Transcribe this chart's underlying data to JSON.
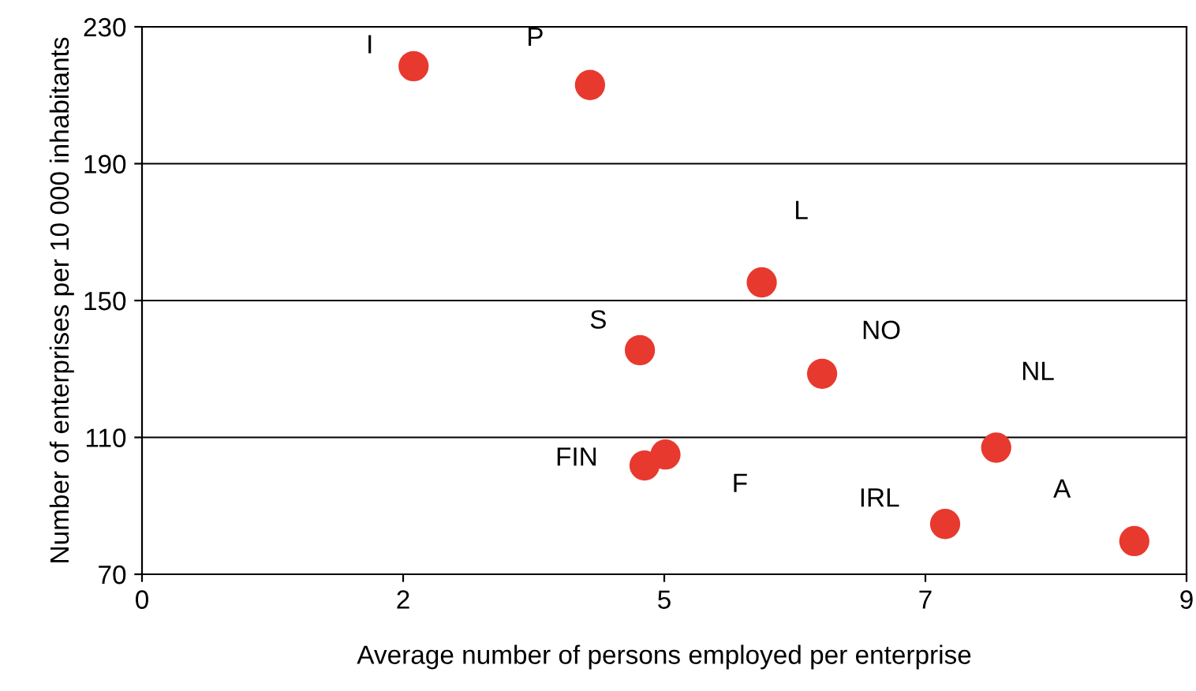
{
  "chart_data": {
    "type": "scatter",
    "xlabel": "Average number of persons employed per enterprise",
    "ylabel": "Number of enterprises per 10 000 inhabitants",
    "series": [
      {
        "color": "#e8392f",
        "x": [
          2.34,
          3.86,
          5.34,
          4.29,
          5.86,
          4.33,
          4.51,
          6.92,
          7.36,
          8.55
        ],
        "values": [
          218.5,
          213,
          155.3,
          135.5,
          128.6,
          101.8,
          105,
          84.7,
          107,
          79.7
        ]
      }
    ],
    "annotations": [
      {
        "text": "I",
        "x": 2.34,
        "y": 218.5
      },
      {
        "text": "P",
        "x": 3.86,
        "y": 213
      },
      {
        "text": "L",
        "x": 5.34,
        "y": 155.3
      },
      {
        "text": "S",
        "x": 4.29,
        "y": 135.5
      },
      {
        "text": "NO",
        "x": 5.86,
        "y": 128.6
      },
      {
        "text": "FIN",
        "x": 4.33,
        "y": 101.8
      },
      {
        "text": "F",
        "x": 4.51,
        "y": 105
      },
      {
        "text": "IRL",
        "x": 6.92,
        "y": 84.7
      },
      {
        "text": "NL",
        "x": 7.36,
        "y": 107
      },
      {
        "text": "A",
        "x": 8.55,
        "y": 79.7
      }
    ],
    "xlim": [
      0,
      9
    ],
    "xticks": [
      0,
      {
        "value": 2.25,
        "label": "2"
      },
      {
        "value": 4.5,
        "label": "5"
      },
      {
        "value": 6.75,
        "label": "7"
      },
      9
    ],
    "ylim": [
      70,
      230
    ],
    "yticks": [
      70,
      110,
      150,
      190,
      230
    ],
    "grid": "y",
    "marker": "circle",
    "legend": false
  }
}
